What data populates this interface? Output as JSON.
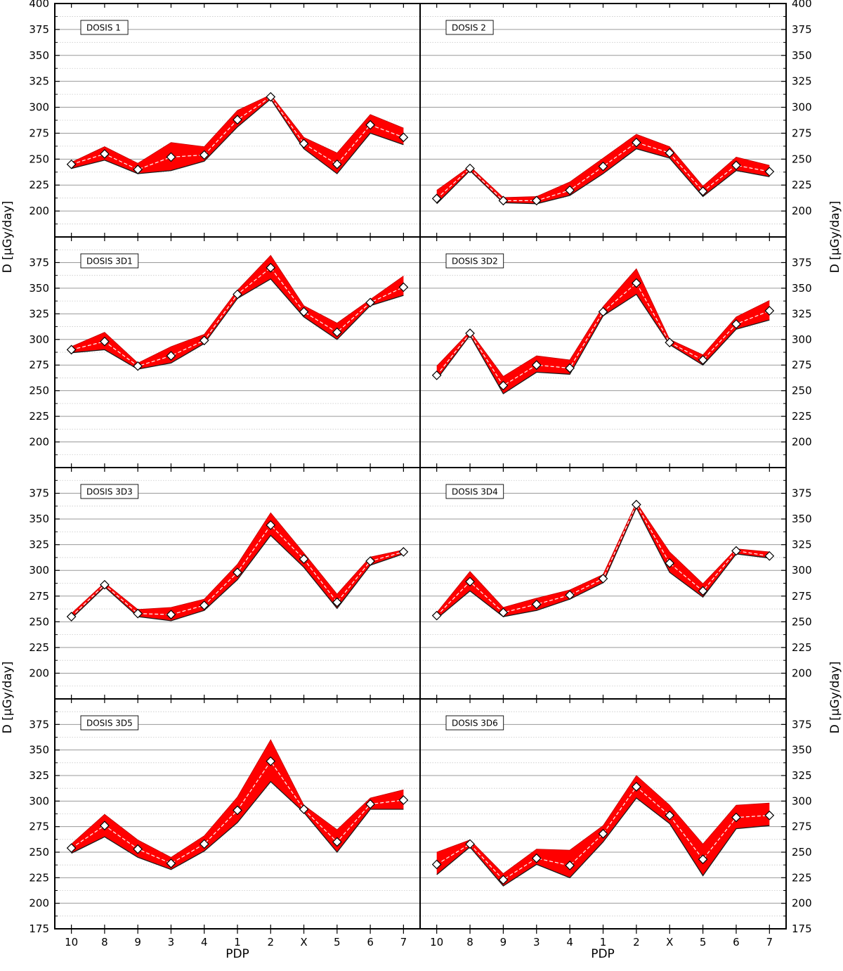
{
  "figure": {
    "ylabel_left": "D [µGy/day]",
    "ylabel_right": "D [µGy/day]",
    "xlabel": "PDP"
  },
  "chart_data": [
    {
      "type": "area",
      "title": "DOSIS 1",
      "categories": [
        "10",
        "8",
        "9",
        "3",
        "4",
        "1",
        "2",
        "X",
        "5",
        "6",
        "7"
      ],
      "ylim": [
        175,
        400
      ],
      "yticks": [
        200,
        225,
        250,
        275,
        300,
        325,
        350,
        375,
        400
      ],
      "series": [
        {
          "values": [
            245,
            255,
            240,
            252,
            254,
            288,
            310,
            265,
            245,
            283,
            271
          ]
        },
        {
          "values": [
            247,
            262,
            246,
            266,
            262,
            297,
            312,
            271,
            256,
            293,
            280
          ]
        },
        {
          "values": [
            241,
            249,
            236,
            239,
            248,
            281,
            308,
            260,
            236,
            275,
            264
          ]
        }
      ]
    },
    {
      "type": "area",
      "title": "DOSIS 2",
      "categories": [
        "10",
        "8",
        "9",
        "3",
        "4",
        "1",
        "2",
        "X",
        "5",
        "6",
        "7"
      ],
      "ylim": [
        175,
        400
      ],
      "yticks": [
        200,
        225,
        250,
        275,
        300,
        325,
        350,
        375,
        400
      ],
      "series": [
        {
          "values": [
            212,
            241,
            210,
            210,
            220,
            243,
            266,
            256,
            219,
            244,
            238
          ]
        },
        {
          "values": [
            220,
            243,
            213,
            214,
            228,
            251,
            274,
            262,
            224,
            252,
            244
          ]
        },
        {
          "values": [
            207,
            239,
            208,
            207,
            215,
            236,
            260,
            251,
            214,
            239,
            233
          ]
        }
      ]
    },
    {
      "type": "area",
      "title": "DOSIS 3D1",
      "categories": [
        "10",
        "8",
        "9",
        "3",
        "4",
        "1",
        "2",
        "X",
        "5",
        "6",
        "7"
      ],
      "ylim": [
        175,
        400
      ],
      "yticks": [
        200,
        225,
        250,
        275,
        300,
        325,
        350,
        375
      ],
      "series": [
        {
          "values": [
            290,
            298,
            274,
            284,
            299,
            344,
            370,
            327,
            307,
            336,
            351
          ]
        },
        {
          "values": [
            293,
            307,
            277,
            293,
            305,
            348,
            382,
            333,
            316,
            339,
            362
          ]
        },
        {
          "values": [
            287,
            290,
            271,
            277,
            296,
            340,
            359,
            322,
            300,
            333,
            343
          ]
        }
      ]
    },
    {
      "type": "area",
      "title": "DOSIS 3D2",
      "categories": [
        "10",
        "8",
        "9",
        "3",
        "4",
        "1",
        "2",
        "X",
        "5",
        "6",
        "7"
      ],
      "ylim": [
        175,
        400
      ],
      "yticks": [
        200,
        225,
        250,
        275,
        300,
        325,
        350,
        375
      ],
      "series": [
        {
          "values": [
            265,
            306,
            255,
            275,
            272,
            327,
            355,
            297,
            280,
            315,
            328
          ]
        },
        {
          "values": [
            274,
            308,
            264,
            284,
            280,
            332,
            369,
            300,
            285,
            322,
            338
          ]
        },
        {
          "values": [
            261,
            304,
            247,
            268,
            266,
            323,
            344,
            295,
            275,
            310,
            319
          ]
        }
      ]
    },
    {
      "type": "area",
      "title": "DOSIS 3D3",
      "categories": [
        "10",
        "8",
        "9",
        "3",
        "4",
        "1",
        "2",
        "X",
        "5",
        "6",
        "7"
      ],
      "ylim": [
        175,
        400
      ],
      "yticks": [
        200,
        225,
        250,
        275,
        300,
        325,
        350,
        375
      ],
      "series": [
        {
          "values": [
            255,
            286,
            258,
            257,
            266,
            298,
            344,
            311,
            269,
            309,
            318
          ]
        },
        {
          "values": [
            258,
            288,
            262,
            264,
            272,
            306,
            356,
            317,
            277,
            313,
            320
          ]
        },
        {
          "values": [
            253,
            284,
            255,
            251,
            261,
            291,
            334,
            303,
            263,
            305,
            316
          ]
        }
      ]
    },
    {
      "type": "area",
      "title": "DOSIS 3D4",
      "categories": [
        "10",
        "8",
        "9",
        "3",
        "4",
        "1",
        "2",
        "X",
        "5",
        "6",
        "7"
      ],
      "ylim": [
        175,
        400
      ],
      "yticks": [
        200,
        225,
        250,
        275,
        300,
        325,
        350,
        375
      ],
      "series": [
        {
          "values": [
            256,
            289,
            259,
            267,
            276,
            292,
            364,
            307,
            280,
            319,
            314
          ]
        },
        {
          "values": [
            259,
            299,
            264,
            273,
            281,
            296,
            366,
            318,
            287,
            321,
            318
          ]
        },
        {
          "values": [
            253,
            280,
            255,
            261,
            272,
            288,
            361,
            298,
            274,
            316,
            312
          ]
        }
      ]
    },
    {
      "type": "area",
      "title": "DOSIS 3D5",
      "categories": [
        "10",
        "8",
        "9",
        "3",
        "4",
        "1",
        "2",
        "X",
        "5",
        "6",
        "7"
      ],
      "ylim": [
        175,
        400
      ],
      "yticks": [
        175,
        200,
        225,
        250,
        275,
        300,
        325,
        350,
        375
      ],
      "series": [
        {
          "values": [
            254,
            276,
            253,
            239,
            258,
            291,
            339,
            292,
            260,
            297,
            301
          ]
        },
        {
          "values": [
            258,
            287,
            262,
            245,
            266,
            304,
            360,
            296,
            272,
            303,
            311
          ]
        },
        {
          "values": [
            249,
            265,
            245,
            233,
            251,
            279,
            319,
            289,
            250,
            292,
            292
          ]
        }
      ]
    },
    {
      "type": "area",
      "title": "DOSIS 3D6",
      "categories": [
        "10",
        "8",
        "9",
        "3",
        "4",
        "1",
        "2",
        "X",
        "5",
        "6",
        "7"
      ],
      "ylim": [
        175,
        400
      ],
      "yticks": [
        175,
        200,
        225,
        250,
        275,
        300,
        325,
        350,
        375
      ],
      "series": [
        {
          "values": [
            238,
            258,
            223,
            244,
            237,
            268,
            314,
            286,
            243,
            284,
            286
          ]
        },
        {
          "values": [
            250,
            262,
            229,
            253,
            252,
            276,
            325,
            296,
            258,
            296,
            298
          ]
        },
        {
          "values": [
            228,
            255,
            217,
            238,
            225,
            260,
            303,
            278,
            227,
            273,
            276
          ]
        }
      ]
    }
  ]
}
